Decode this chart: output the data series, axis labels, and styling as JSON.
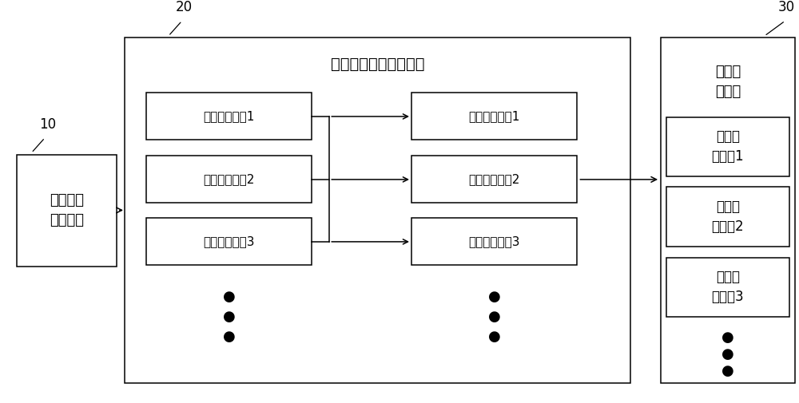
{
  "bg_color": "#ffffff",
  "text_color": "#000000",
  "box_edge_color": "#000000",
  "fig_width": 10.0,
  "fig_height": 5.05,
  "label_10": "10",
  "label_20": "20",
  "label_30": "30",
  "box_left_label": "前置望远\n光学系统",
  "box_main_label": "变直径光纤视场分割器",
  "input_labels": [
    "输入端子视场1",
    "输入端子视场2",
    "输入端子视场3"
  ],
  "output_labels": [
    "输出端子视场1",
    "输出端子视场2",
    "输出端子视场3"
  ],
  "right_top_label": "光谱分\n光系统",
  "right_inner_labels": [
    "光谱分\n光系统1",
    "光谱分\n光系统2",
    "光谱分\n光系统3"
  ]
}
